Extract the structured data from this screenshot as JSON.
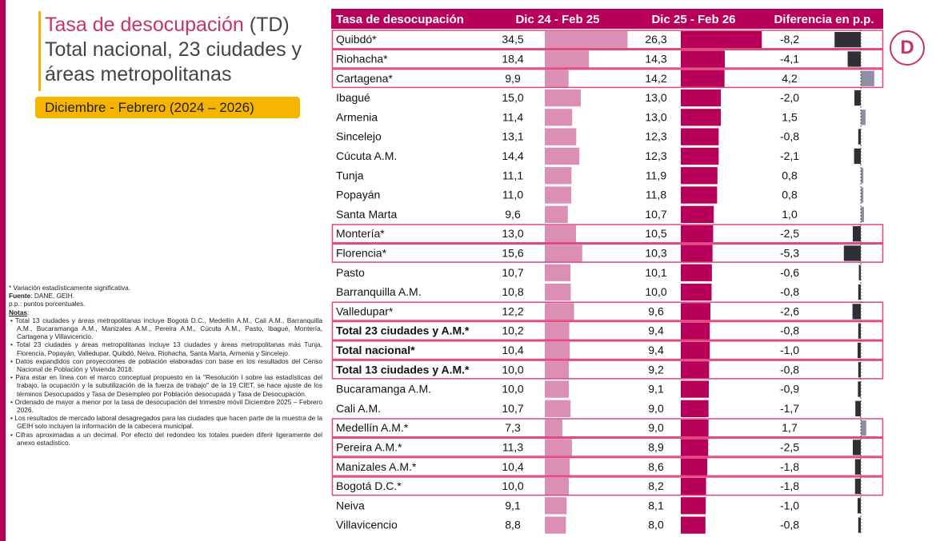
{
  "title": {
    "line1_colored": "Tasa de desocupación",
    "line1_rest": " (TD)",
    "line2": "Total nacional, 23 ciudades y",
    "line3": "áreas metropolitanas"
  },
  "period": "Diciembre - Febrero (2024 – 2026)",
  "colors": {
    "header_bg": "#b8005a",
    "bar_2024": "#dc8fb4",
    "bar_2025": "#b8005a",
    "diff_negative": "#2f2f37",
    "diff_positive": "#8e8ea5",
    "highlight_border": "#e0457b",
    "brand_accent": "#f5b400"
  },
  "logo_letter": "D",
  "chart_data": {
    "type": "table",
    "columns": [
      "Tasa de desocupación",
      "Dic 24 - Feb 25",
      "Dic 25 - Feb 26",
      "Diferencia en p.p."
    ],
    "rows": [
      {
        "name": "Quibdó*",
        "v1": "34,5",
        "v2": "26,3",
        "d": "-8,2",
        "highlight": true,
        "bold": false
      },
      {
        "name": "Riohacha*",
        "v1": "18,4",
        "v2": "14,3",
        "d": "-4,1",
        "highlight": true,
        "bold": false
      },
      {
        "name": "Cartagena*",
        "v1": "9,9",
        "v2": "14,2",
        "d": "4,2",
        "highlight": true,
        "bold": false
      },
      {
        "name": "Ibagué",
        "v1": "15,0",
        "v2": "13,0",
        "d": "-2,0",
        "highlight": false,
        "bold": false
      },
      {
        "name": "Armenia",
        "v1": "11,4",
        "v2": "13,0",
        "d": "1,5",
        "highlight": false,
        "bold": false
      },
      {
        "name": "Sincelejo",
        "v1": "13,1",
        "v2": "12,3",
        "d": "-0,8",
        "highlight": false,
        "bold": false
      },
      {
        "name": "Cúcuta A.M.",
        "v1": "14,4",
        "v2": "12,3",
        "d": "-2,1",
        "highlight": false,
        "bold": false
      },
      {
        "name": "Tunja",
        "v1": "11,1",
        "v2": "11,9",
        "d": "0,8",
        "highlight": false,
        "bold": false
      },
      {
        "name": "Popayán",
        "v1": "11,0",
        "v2": "11,8",
        "d": "0,8",
        "highlight": false,
        "bold": false
      },
      {
        "name": "Santa Marta",
        "v1": "9,6",
        "v2": "10,7",
        "d": "1,0",
        "highlight": false,
        "bold": false
      },
      {
        "name": "Montería*",
        "v1": "13,0",
        "v2": "10,5",
        "d": "-2,5",
        "highlight": true,
        "bold": false
      },
      {
        "name": "Florencia*",
        "v1": "15,6",
        "v2": "10,3",
        "d": "-5,3",
        "highlight": true,
        "bold": false
      },
      {
        "name": "Pasto",
        "v1": "10,7",
        "v2": "10,1",
        "d": "-0,6",
        "highlight": false,
        "bold": false
      },
      {
        "name": "Barranquilla A.M.",
        "v1": "10,8",
        "v2": "10,0",
        "d": "-0,8",
        "highlight": false,
        "bold": false
      },
      {
        "name": "Valledupar*",
        "v1": "12,2",
        "v2": "9,6",
        "d": "-2,6",
        "highlight": true,
        "bold": false
      },
      {
        "name": "Total 23 ciudades y A.M.*",
        "v1": "10,2",
        "v2": "9,4",
        "d": "-0,8",
        "highlight": true,
        "bold": true
      },
      {
        "name": "Total nacional*",
        "v1": "10,4",
        "v2": "9,4",
        "d": "-1,0",
        "highlight": true,
        "bold": true
      },
      {
        "name": "Total 13 ciudades y A.M.*",
        "v1": "10,0",
        "v2": "9,2",
        "d": "-0,8",
        "highlight": true,
        "bold": true
      },
      {
        "name": "Bucaramanga A.M.",
        "v1": "10,0",
        "v2": "9,1",
        "d": "-0,9",
        "highlight": false,
        "bold": false
      },
      {
        "name": "Cali A.M.",
        "v1": "10,7",
        "v2": "9,0",
        "d": "-1,7",
        "highlight": false,
        "bold": false
      },
      {
        "name": "Medellín A.M.*",
        "v1": "7,3",
        "v2": "9,0",
        "d": "1,7",
        "highlight": true,
        "bold": false
      },
      {
        "name": "Pereira A.M.*",
        "v1": "11,3",
        "v2": "8,9",
        "d": "-2,5",
        "highlight": true,
        "bold": false
      },
      {
        "name": "Manizales A.M.*",
        "v1": "10,4",
        "v2": "8,6",
        "d": "-1,8",
        "highlight": true,
        "bold": false
      },
      {
        "name": "Bogotá D.C.*",
        "v1": "10,0",
        "v2": "8,2",
        "d": "-1,8",
        "highlight": true,
        "bold": false
      },
      {
        "name": "Neiva",
        "v1": "9,1",
        "v2": "8,1",
        "d": "-1,0",
        "highlight": false,
        "bold": false
      },
      {
        "name": "Villavicencio",
        "v1": "8,8",
        "v2": "8,0",
        "d": "-0,8",
        "highlight": false,
        "bold": false
      }
    ]
  },
  "notes": {
    "significance": "* Variación estadísticamente significativa.",
    "source_label": "Fuente",
    "source_text": ": DANE, GEIH.",
    "pp": "p.p.: puntos porcentuales.",
    "notes_label": "Notas",
    "notes_colon": ":",
    "items": [
      "Total 13 ciudades y áreas metropolitanas incluye Bogotá D.C., Medellín A.M., Cali A.M., Barranquilla A.M., Bucaramanga A.M., Manizales A.M., Pereira A.M., Cúcuta A.M., Pasto, Ibagué, Montería, Cartagena y Villavicencio.",
      "Total 23 ciudades y áreas metropolitanas incluye 13 ciudades y áreas metropolitanas más Tunja, Florencia, Popayán, Valledupar, Quibdó, Neiva, Riohacha, Santa Marta, Armenia y Sincelejo.",
      "Datos expandidos con proyecciones de población elaboradas con base en los resultados del Censo Nacional de Población y Vivienda 2018.",
      "Para estar en línea con el marco conceptual propuesto en la \"Resolución I sobre las estadísticas del trabajo, la ocupación y la subutilización de la fuerza de trabajo\" de la 19 CIET, se hace ajuste de los términos Desocupados y Tasa de Desempleo por Población desocupada y Tasa de Desocupación.",
      "Ordenado de mayor a menor por la tasa de desocupación del trimestre móvil Diciembre 2025 – Febrero 2026.",
      "Los resultados de mercado laboral desagregados para las ciudades que hacen parte de la muestra de la GEIH solo incluyen la información de la cabecera municipal.",
      "Cifras aproximadas a un decimal. Por efecto del redondeo los totales pueden diferir ligeramente del anexo estadístico."
    ]
  }
}
